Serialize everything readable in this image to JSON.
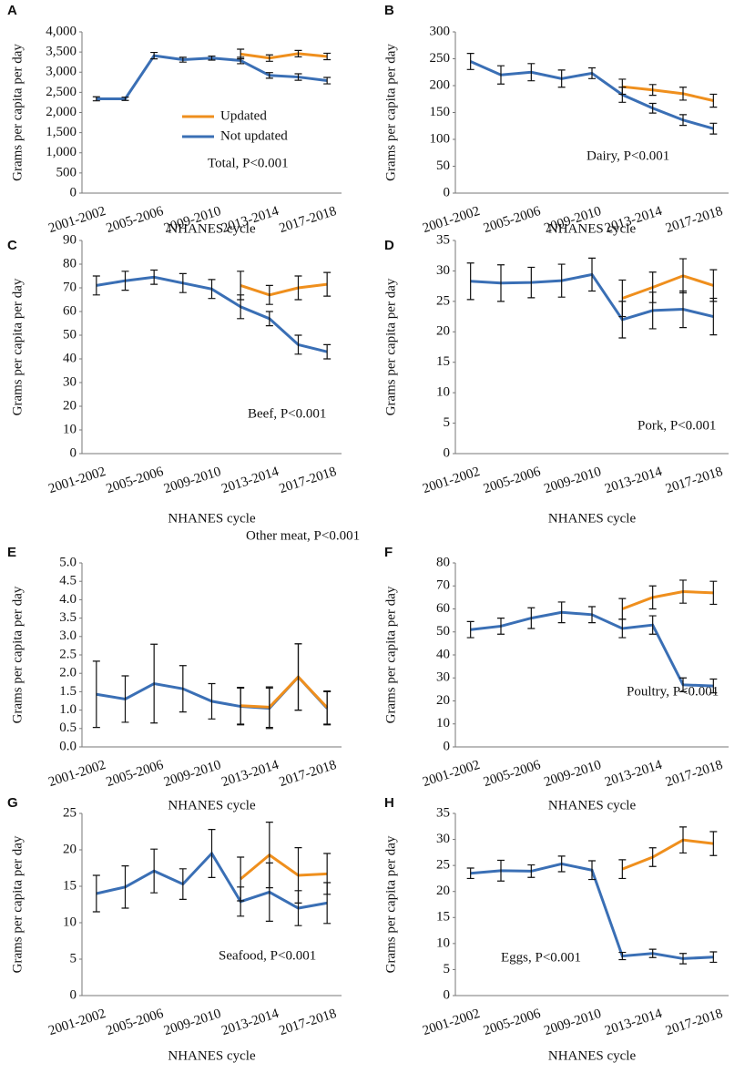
{
  "chart_data": [
    {
      "type": "line",
      "label": "A",
      "annotation": "Total, P<0.001",
      "x_label": "NHANES cycle",
      "y_label": "Grams per capita per day",
      "legend": true,
      "categories": [
        "2001-2002",
        null,
        "2005-2006",
        null,
        "2009-2010",
        null,
        "2013-2014",
        null,
        "2017-2018"
      ],
      "series": [
        {
          "name": "Updated",
          "color": "#ef8f1d",
          "values": [
            null,
            null,
            null,
            null,
            null,
            3450,
            3350,
            3460,
            3390
          ],
          "errors": [
            null,
            null,
            null,
            null,
            null,
            120,
            80,
            80,
            80
          ]
        },
        {
          "name": "Not updated",
          "color": "#3a6fb5",
          "values": [
            2340,
            2340,
            3410,
            3310,
            3350,
            3290,
            2920,
            2880,
            2790
          ],
          "errors": [
            50,
            40,
            80,
            60,
            50,
            80,
            70,
            80,
            80
          ]
        }
      ],
      "ylim": [
        0,
        4000
      ],
      "yticks": [
        0,
        {
          "value": 500,
          "label": "500"
        },
        {
          "value": 1000,
          "label": "1,000"
        },
        {
          "value": 1500,
          "label": "1,500"
        },
        {
          "value": 2000,
          "label": "2,000"
        },
        {
          "value": 2500,
          "label": "2,500"
        },
        {
          "value": 3000,
          "label": "3,000"
        },
        {
          "value": 3500,
          "label": "3,500"
        },
        {
          "value": 4000,
          "label": "4,000"
        }
      ]
    },
    {
      "type": "line",
      "label": "B",
      "annotation": "Dairy, P<0.001",
      "x_label": "NHANES cycle",
      "y_label": "Grams per capita per day",
      "categories": [
        "2001-2002",
        null,
        "2005-2006",
        null,
        "2009-2010",
        null,
        "2013-2014",
        null,
        "2017-2018"
      ],
      "series": [
        {
          "color": "#ef8f1d",
          "values": [
            null,
            null,
            null,
            null,
            null,
            198,
            192,
            185,
            172
          ],
          "errors": [
            null,
            null,
            null,
            null,
            null,
            14,
            10,
            12,
            12
          ]
        },
        {
          "color": "#3a6fb5",
          "values": [
            245,
            220,
            225,
            213,
            223,
            183,
            158,
            136,
            120
          ],
          "errors": [
            15,
            17,
            16,
            16,
            10,
            14,
            9,
            10,
            10
          ]
        }
      ],
      "ylim": [
        0,
        300
      ],
      "yticks": [
        0,
        50,
        100,
        150,
        200,
        250,
        300
      ]
    },
    {
      "type": "line",
      "label": "C",
      "annotation": "Beef, P<0.001",
      "x_label": "NHANES cycle",
      "y_label": "Grams per capita per day",
      "categories": [
        "2001-2002",
        null,
        "2005-2006",
        null,
        "2009-2010",
        null,
        "2013-2014",
        null,
        "2017-2018"
      ],
      "series": [
        {
          "color": "#ef8f1d",
          "values": [
            null,
            null,
            null,
            null,
            null,
            71,
            67,
            70,
            71.5
          ],
          "errors": [
            null,
            null,
            null,
            null,
            null,
            6,
            4,
            5,
            5
          ]
        },
        {
          "color": "#3a6fb5",
          "values": [
            71,
            73,
            74.5,
            72,
            69.5,
            62,
            57,
            46,
            43
          ],
          "errors": [
            4,
            4,
            3,
            4,
            4,
            5,
            3,
            4,
            3
          ]
        }
      ],
      "ylim": [
        0,
        90
      ],
      "yticks": [
        0,
        10,
        20,
        30,
        40,
        50,
        60,
        70,
        80,
        90
      ]
    },
    {
      "type": "line",
      "label": "D",
      "annotation": "Pork, P<0.001",
      "x_label": "NHANES cycle",
      "y_label": "Grams per capita per day",
      "categories": [
        "2001-2002",
        null,
        "2005-2006",
        null,
        "2009-2010",
        null,
        "2013-2014",
        null,
        "2017-2018"
      ],
      "series": [
        {
          "color": "#ef8f1d",
          "values": [
            null,
            null,
            null,
            null,
            null,
            25.5,
            27.3,
            29.2,
            27.6
          ],
          "errors": [
            null,
            null,
            null,
            null,
            null,
            3,
            2.5,
            2.8,
            2.6
          ]
        },
        {
          "color": "#3a6fb5",
          "values": [
            28.3,
            28,
            28.1,
            28.4,
            29.4,
            22,
            23.5,
            23.7,
            22.5
          ],
          "errors": [
            3,
            3,
            2.5,
            2.7,
            2.7,
            3,
            3,
            3,
            3
          ]
        }
      ],
      "ylim": [
        0,
        35
      ],
      "yticks": [
        0,
        5,
        10,
        15,
        20,
        25,
        30,
        35
      ]
    },
    {
      "type": "line",
      "label": "E",
      "annotation": "Other meat, P<0.001",
      "x_label": "NHANES cycle",
      "y_label": "Grams per capita per day",
      "categories": [
        "2001-2002",
        null,
        "2005-2006",
        null,
        "2009-2010",
        null,
        "2013-2014",
        null,
        "2017-2018"
      ],
      "series": [
        {
          "color": "#ef8f1d",
          "values": [
            null,
            null,
            null,
            null,
            null,
            1.12,
            1.08,
            1.9,
            1.07
          ],
          "errors": [
            null,
            null,
            null,
            null,
            null,
            0.5,
            0.55,
            0.9,
            0.45
          ]
        },
        {
          "color": "#3a6fb5",
          "values": [
            1.43,
            1.3,
            1.72,
            1.58,
            1.24,
            1.1,
            1.05,
            1.9,
            1.05
          ],
          "errors": [
            0.9,
            0.63,
            1.07,
            0.63,
            0.48,
            0.5,
            0.55,
            0.9,
            0.45
          ]
        }
      ],
      "ylim": [
        0,
        5
      ],
      "yticks": [
        {
          "value": 0,
          "label": "0.0"
        },
        {
          "value": 0.5,
          "label": "0.5"
        },
        {
          "value": 1,
          "label": "1.0"
        },
        {
          "value": 1.5,
          "label": "1.5"
        },
        {
          "value": 2,
          "label": "2.0"
        },
        {
          "value": 2.5,
          "label": "2.5"
        },
        {
          "value": 3,
          "label": "3.0"
        },
        {
          "value": 3.5,
          "label": "3.5"
        },
        {
          "value": 4,
          "label": "4.0"
        },
        {
          "value": 4.5,
          "label": "4.5"
        },
        {
          "value": 5,
          "label": "5.0"
        }
      ]
    },
    {
      "type": "line",
      "label": "F",
      "annotation": "Poultry, P<0.001",
      "x_label": "NHANES cycle",
      "y_label": "Grams per capita per day",
      "categories": [
        "2001-2002",
        null,
        "2005-2006",
        null,
        "2009-2010",
        null,
        "2013-2014",
        null,
        "2017-2018"
      ],
      "series": [
        {
          "color": "#ef8f1d",
          "values": [
            null,
            null,
            null,
            null,
            null,
            60,
            65,
            67.5,
            67
          ],
          "errors": [
            null,
            null,
            null,
            null,
            null,
            4.5,
            5,
            5,
            5
          ]
        },
        {
          "color": "#3a6fb5",
          "values": [
            51,
            52.5,
            56,
            58.5,
            57.5,
            51.5,
            53,
            27,
            26.5
          ],
          "errors": [
            3.5,
            3.5,
            4.5,
            4.5,
            3.5,
            4,
            4,
            3,
            3
          ]
        }
      ],
      "ylim": [
        0,
        80
      ],
      "yticks": [
        0,
        10,
        20,
        30,
        40,
        50,
        60,
        70,
        80
      ]
    },
    {
      "type": "line",
      "label": "G",
      "annotation": "Seafood, P<0.001",
      "x_label": "NHANES cycle",
      "y_label": "Grams per capita per day",
      "categories": [
        "2001-2002",
        null,
        "2005-2006",
        null,
        "2009-2010",
        null,
        "2013-2014",
        null,
        "2017-2018"
      ],
      "series": [
        {
          "color": "#ef8f1d",
          "values": [
            null,
            null,
            null,
            null,
            null,
            16,
            19.3,
            16.5,
            16.7
          ],
          "errors": [
            null,
            null,
            null,
            null,
            null,
            3,
            4.5,
            3.8,
            2.8
          ]
        },
        {
          "color": "#3a6fb5",
          "values": [
            14,
            14.9,
            17.1,
            15.3,
            19.5,
            12.9,
            14.2,
            12,
            12.7
          ],
          "errors": [
            2.5,
            2.9,
            3,
            2.1,
            3.3,
            2,
            4,
            2.4,
            2.8
          ]
        }
      ],
      "ylim": [
        0,
        25
      ],
      "yticks": [
        0,
        5,
        10,
        15,
        20,
        25
      ]
    },
    {
      "type": "line",
      "label": "H",
      "annotation": "Eggs, P<0.001",
      "x_label": "NHANES cycle",
      "y_label": "Grams per capita per day",
      "categories": [
        "2001-2002",
        null,
        "2005-2006",
        null,
        "2009-2010",
        null,
        "2013-2014",
        null,
        "2017-2018"
      ],
      "series": [
        {
          "color": "#ef8f1d",
          "values": [
            null,
            null,
            null,
            null,
            null,
            24.3,
            26.6,
            29.9,
            29.2
          ],
          "errors": [
            null,
            null,
            null,
            null,
            null,
            1.8,
            1.8,
            2.5,
            2.3
          ]
        },
        {
          "color": "#3a6fb5",
          "values": [
            23.5,
            24,
            23.9,
            25.3,
            24.1,
            7.6,
            8.1,
            7.1,
            7.4
          ],
          "errors": [
            1,
            2,
            1.2,
            1.5,
            1.8,
            0.7,
            0.8,
            1,
            1
          ]
        }
      ],
      "ylim": [
        0,
        35
      ],
      "yticks": [
        0,
        5,
        10,
        15,
        20,
        25,
        30,
        35
      ]
    }
  ]
}
